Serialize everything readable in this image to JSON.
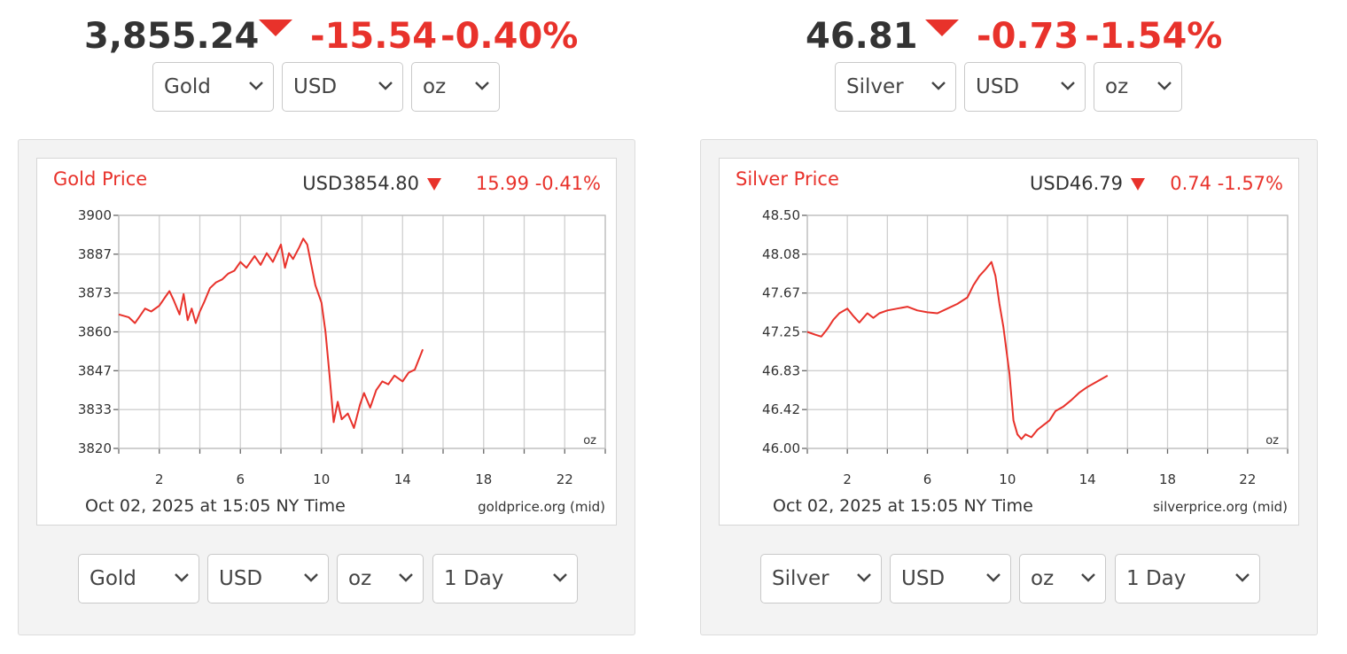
{
  "colors": {
    "down": "#e8322b",
    "text": "#333333",
    "grid": "#cfcfcf"
  },
  "panels": {
    "gold": {
      "ticker": {
        "price": "3,855.24",
        "change": "-15.54",
        "change_pct": "-0.40%",
        "direction": "down"
      },
      "top_selects": {
        "metal": "Gold",
        "currency": "USD",
        "unit": "oz"
      },
      "bottom_selects": {
        "metal": "Gold",
        "currency": "USD",
        "unit": "oz",
        "range": "1 Day"
      },
      "chart_title": "Gold Price",
      "current": "USD3854.80",
      "change": "15.99 -0.41%",
      "timestamp": "Oct 02, 2025 at 15:05 NY Time",
      "source": "goldprice.org (mid)",
      "unit_label": "oz"
    },
    "silver": {
      "ticker": {
        "price": "46.81",
        "change": "-0.73",
        "change_pct": "-1.54%",
        "direction": "down"
      },
      "top_selects": {
        "metal": "Silver",
        "currency": "USD",
        "unit": "oz"
      },
      "bottom_selects": {
        "metal": "Silver",
        "currency": "USD",
        "unit": "oz",
        "range": "1 Day"
      },
      "chart_title": "Silver Price",
      "current": "USD46.79",
      "change": "0.74 -1.57%",
      "timestamp": "Oct 02, 2025 at 15:05 NY Time",
      "source": "silverprice.org (mid)",
      "unit_label": "oz"
    }
  },
  "chart_data": [
    {
      "type": "line",
      "title": "Gold Price",
      "xlabel": "Oct 02, 2025 at 15:05 NY Time",
      "ylabel": "",
      "xlim": [
        0,
        24
      ],
      "ylim": [
        3820,
        3900
      ],
      "y_ticks": [
        "3900",
        "3887",
        "3873",
        "3860",
        "3847",
        "3833",
        "3820"
      ],
      "x_ticks": [
        "2",
        "6",
        "10",
        "14",
        "18",
        "22"
      ],
      "grid": true,
      "series": [
        {
          "color": "#e8322b",
          "x": [
            0,
            0.5,
            0.8,
            1.0,
            1.3,
            1.6,
            2.0,
            2.3,
            2.5,
            2.7,
            3.0,
            3.2,
            3.4,
            3.6,
            3.8,
            4.0,
            4.2,
            4.5,
            4.8,
            5.1,
            5.4,
            5.7,
            6.0,
            6.3,
            6.7,
            7.0,
            7.3,
            7.6,
            8.0,
            8.2,
            8.4,
            8.6,
            8.9,
            9.1,
            9.3,
            9.5,
            9.7,
            10.0,
            10.2,
            10.4,
            10.6,
            10.8,
            11.0,
            11.3,
            11.6,
            11.9,
            12.1,
            12.4,
            12.7,
            13.0,
            13.3,
            13.6,
            14.0,
            14.3,
            14.6,
            15.0
          ],
          "y": [
            3866,
            3865,
            3863,
            3865,
            3868,
            3867,
            3869,
            3872,
            3874,
            3871,
            3866,
            3873,
            3864,
            3868,
            3863,
            3867,
            3870,
            3875,
            3877,
            3878,
            3880,
            3881,
            3884,
            3882,
            3886,
            3883,
            3887,
            3884,
            3890,
            3882,
            3887,
            3885,
            3889,
            3892,
            3890,
            3883,
            3876,
            3870,
            3860,
            3845,
            3829,
            3836,
            3830,
            3832,
            3827,
            3835,
            3839,
            3834,
            3840,
            3843,
            3842,
            3845,
            3843,
            3846,
            3847,
            3854
          ]
        }
      ]
    },
    {
      "type": "line",
      "title": "Silver Price",
      "xlabel": "Oct 02, 2025 at 15:05 NY Time",
      "ylabel": "",
      "xlim": [
        0,
        24
      ],
      "ylim": [
        46.0,
        48.5
      ],
      "y_ticks": [
        "48.50",
        "48.08",
        "47.67",
        "47.25",
        "46.83",
        "46.42",
        "46.00"
      ],
      "x_ticks": [
        "2",
        "6",
        "10",
        "14",
        "18",
        "22"
      ],
      "grid": true,
      "series": [
        {
          "color": "#e8322b",
          "x": [
            0,
            0.4,
            0.7,
            1.0,
            1.3,
            1.6,
            2.0,
            2.3,
            2.6,
            2.8,
            3.0,
            3.3,
            3.6,
            4.0,
            4.5,
            5.0,
            5.5,
            6.0,
            6.5,
            7.0,
            7.5,
            8.0,
            8.3,
            8.6,
            8.9,
            9.2,
            9.4,
            9.6,
            9.8,
            10.1,
            10.3,
            10.5,
            10.7,
            10.9,
            11.2,
            11.5,
            11.8,
            12.1,
            12.4,
            12.8,
            13.2,
            13.6,
            14.0,
            14.5,
            15.0
          ],
          "y": [
            47.25,
            47.22,
            47.2,
            47.28,
            47.38,
            47.45,
            47.5,
            47.42,
            47.35,
            47.4,
            47.45,
            47.4,
            47.45,
            47.48,
            47.5,
            47.52,
            47.48,
            47.46,
            47.45,
            47.5,
            47.55,
            47.62,
            47.75,
            47.85,
            47.92,
            48.0,
            47.85,
            47.55,
            47.3,
            46.8,
            46.3,
            46.15,
            46.1,
            46.15,
            46.12,
            46.2,
            46.25,
            46.3,
            46.4,
            46.45,
            46.52,
            46.6,
            46.66,
            46.72,
            46.78
          ]
        }
      ]
    }
  ]
}
